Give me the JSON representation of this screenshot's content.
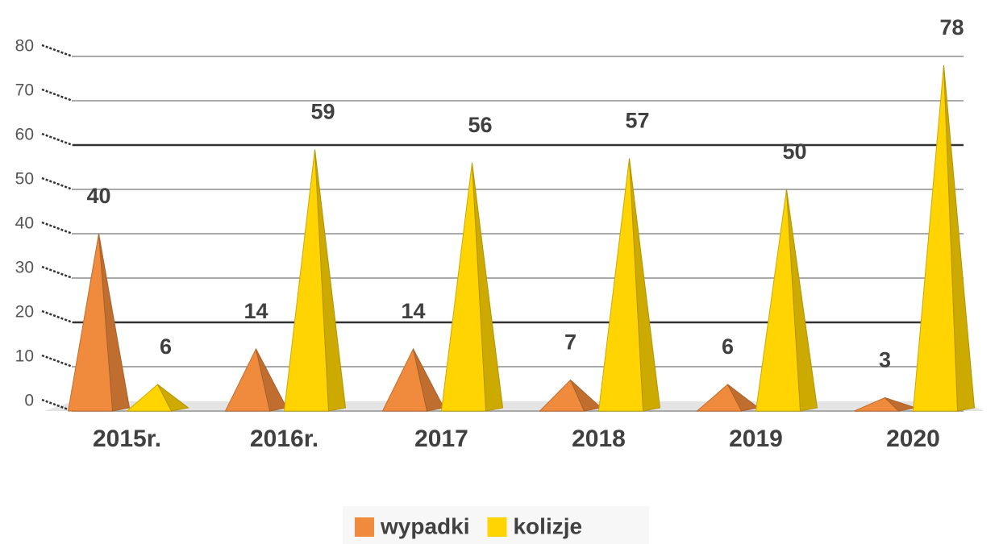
{
  "chart_data": {
    "type": "bar",
    "categories": [
      "2015r.",
      "2016r.",
      "2017",
      "2018",
      "2019",
      "2020"
    ],
    "series": [
      {
        "name": "wypadki",
        "color": "#f08a3c",
        "values": [
          40,
          14,
          14,
          7,
          6,
          3
        ]
      },
      {
        "name": "kolizje",
        "color": "#ffd400",
        "values": [
          6,
          59,
          56,
          57,
          50,
          78
        ]
      }
    ],
    "ylim": [
      0,
      80
    ],
    "yticks": [
      0,
      10,
      20,
      30,
      40,
      50,
      60,
      70,
      80
    ],
    "grid": true,
    "legend": "bottom"
  }
}
